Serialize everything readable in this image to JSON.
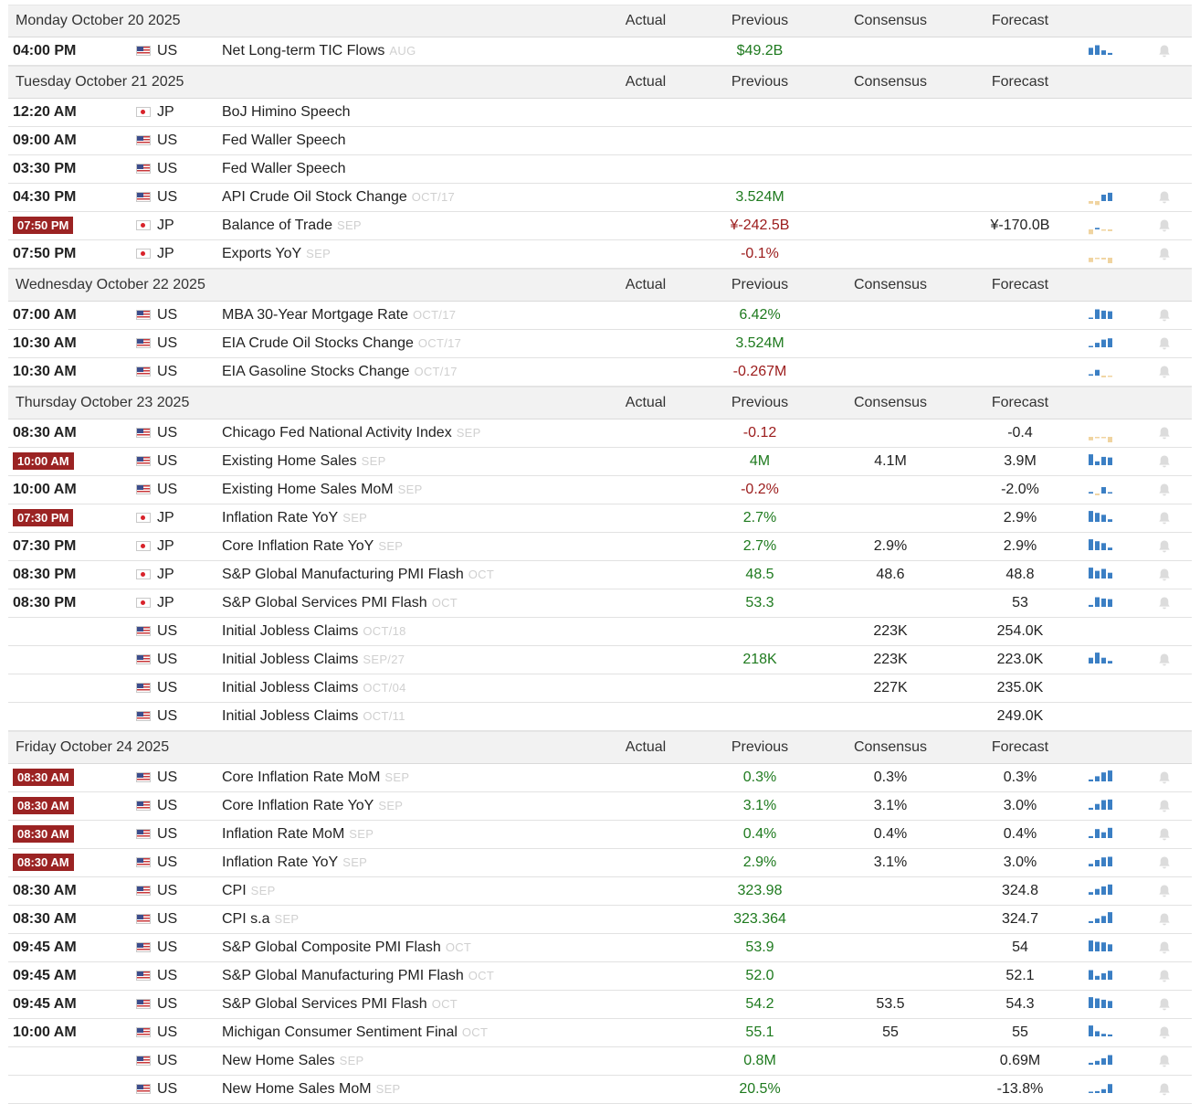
{
  "columns": {
    "actual": "Actual",
    "previous": "Previous",
    "consensus": "Consensus",
    "forecast": "Forecast"
  },
  "colors": {
    "positive": "#1e7a1e",
    "negative": "#9b1b1b",
    "highlight": "#9b2323",
    "spark_up": "#3b7fc4",
    "spark_down": "#f0d4a0"
  },
  "icons": {
    "chart": "mini-bar-chart-icon",
    "alert": "bell-icon"
  },
  "days": [
    {
      "label": "Monday October 20 2025",
      "events": [
        {
          "time": "04:00 PM",
          "hl": false,
          "flag": "us",
          "country": "US",
          "name": "Net Long-term TIC Flows",
          "ref": "AUG",
          "actual": "",
          "previous": "$49.2B",
          "prev_tone": "pos",
          "consensus": "",
          "forecast": "",
          "spark": [
            0.55,
            0.75,
            0.35,
            0.15
          ],
          "has_alert": true
        }
      ]
    },
    {
      "label": "Tuesday October 21 2025",
      "events": [
        {
          "time": "12:20 AM",
          "hl": false,
          "flag": "jp",
          "country": "JP",
          "name": "BoJ Himino Speech",
          "ref": "",
          "actual": "",
          "previous": "",
          "prev_tone": "neu",
          "consensus": "",
          "forecast": "",
          "spark": null,
          "has_alert": false
        },
        {
          "time": "09:00 AM",
          "hl": false,
          "flag": "us",
          "country": "US",
          "name": "Fed Waller Speech",
          "ref": "",
          "actual": "",
          "previous": "",
          "prev_tone": "neu",
          "consensus": "",
          "forecast": "",
          "spark": null,
          "has_alert": false
        },
        {
          "time": "03:30 PM",
          "hl": false,
          "flag": "us",
          "country": "US",
          "name": "Fed Waller Speech",
          "ref": "",
          "actual": "",
          "previous": "",
          "prev_tone": "neu",
          "consensus": "",
          "forecast": "",
          "spark": null,
          "has_alert": false
        },
        {
          "time": "04:30 PM",
          "hl": false,
          "flag": "us",
          "country": "US",
          "name": "API Crude Oil Stock Change",
          "ref": "OCT/17",
          "actual": "",
          "previous": "3.524M",
          "prev_tone": "pos",
          "consensus": "",
          "forecast": "",
          "spark": [
            -0.3,
            -0.45,
            0.5,
            0.65
          ],
          "has_alert": true
        },
        {
          "time": "07:50 PM",
          "hl": true,
          "flag": "jp",
          "country": "JP",
          "name": "Balance of Trade",
          "ref": "SEP",
          "actual": "",
          "previous": "¥-242.5B",
          "prev_tone": "neg",
          "consensus": "",
          "forecast": "¥-170.0B",
          "spark": [
            -0.55,
            0.12,
            -0.12,
            -0.2
          ],
          "has_alert": true
        },
        {
          "time": "07:50 PM",
          "hl": false,
          "flag": "jp",
          "country": "JP",
          "name": "Exports YoY",
          "ref": "SEP",
          "actual": "",
          "previous": "-0.1%",
          "prev_tone": "neg",
          "consensus": "",
          "forecast": "",
          "spark": [
            -0.5,
            -0.1,
            -0.2,
            -0.75
          ],
          "has_alert": true
        }
      ]
    },
    {
      "label": "Wednesday October 22 2025",
      "events": [
        {
          "time": "07:00 AM",
          "hl": false,
          "flag": "us",
          "country": "US",
          "name": "MBA 30-Year Mortgage Rate",
          "ref": "OCT/17",
          "actual": "",
          "previous": "6.42%",
          "prev_tone": "pos",
          "consensus": "",
          "forecast": "",
          "spark": [
            0.1,
            0.75,
            0.65,
            0.6
          ],
          "has_alert": true
        },
        {
          "time": "10:30 AM",
          "hl": false,
          "flag": "us",
          "country": "US",
          "name": "EIA Crude Oil Stocks Change",
          "ref": "OCT/17",
          "actual": "",
          "previous": "3.524M",
          "prev_tone": "pos",
          "consensus": "",
          "forecast": "",
          "spark": [
            0.1,
            0.35,
            0.6,
            0.7
          ],
          "has_alert": true
        },
        {
          "time": "10:30 AM",
          "hl": false,
          "flag": "us",
          "country": "US",
          "name": "EIA Gasoline Stocks Change",
          "ref": "OCT/17",
          "actual": "",
          "previous": "-0.267M",
          "prev_tone": "neg",
          "consensus": "",
          "forecast": "",
          "spark": [
            0.1,
            0.45,
            -0.2,
            -0.15
          ],
          "has_alert": true
        }
      ]
    },
    {
      "label": "Thursday October 23 2025",
      "events": [
        {
          "time": "08:30 AM",
          "hl": false,
          "flag": "us",
          "country": "US",
          "name": "Chicago Fed National Activity Index",
          "ref": "SEP",
          "actual": "",
          "previous": "-0.12",
          "prev_tone": "neg",
          "consensus": "",
          "forecast": "-0.4",
          "spark": [
            -0.4,
            -0.15,
            -0.15,
            -0.75
          ],
          "has_alert": true
        },
        {
          "time": "10:00 AM",
          "hl": true,
          "flag": "us",
          "country": "US",
          "name": "Existing Home Sales",
          "ref": "SEP",
          "actual": "",
          "previous": "4M",
          "prev_tone": "pos",
          "consensus": "4.1M",
          "forecast": "3.9M",
          "spark": [
            0.85,
            0.3,
            0.65,
            0.6
          ],
          "has_alert": true
        },
        {
          "time": "10:00 AM",
          "hl": false,
          "flag": "us",
          "country": "US",
          "name": "Existing Home Sales MoM",
          "ref": "SEP",
          "actual": "",
          "previous": "-0.2%",
          "prev_tone": "neg",
          "consensus": "",
          "forecast": "-2.0%",
          "spark": [
            0.12,
            -0.2,
            0.5,
            0.1
          ],
          "has_alert": true
        },
        {
          "time": "07:30 PM",
          "hl": true,
          "flag": "jp",
          "country": "JP",
          "name": "Inflation Rate YoY",
          "ref": "SEP",
          "actual": "",
          "previous": "2.7%",
          "prev_tone": "pos",
          "consensus": "",
          "forecast": "2.9%",
          "spark": [
            0.85,
            0.7,
            0.55,
            0.2
          ],
          "has_alert": true
        },
        {
          "time": "07:30 PM",
          "hl": false,
          "flag": "jp",
          "country": "JP",
          "name": "Core Inflation Rate YoY",
          "ref": "SEP",
          "actual": "",
          "previous": "2.7%",
          "prev_tone": "pos",
          "consensus": "2.9%",
          "forecast": "2.9%",
          "spark": [
            0.85,
            0.7,
            0.55,
            0.2
          ],
          "has_alert": true
        },
        {
          "time": "08:30 PM",
          "hl": false,
          "flag": "jp",
          "country": "JP",
          "name": "S&P Global Manufacturing PMI Flash",
          "ref": "OCT",
          "actual": "",
          "previous": "48.5",
          "prev_tone": "pos",
          "consensus": "48.6",
          "forecast": "48.8",
          "spark": [
            0.85,
            0.6,
            0.75,
            0.45
          ],
          "has_alert": true
        },
        {
          "time": "08:30 PM",
          "hl": false,
          "flag": "jp",
          "country": "JP",
          "name": "S&P Global Services PMI Flash",
          "ref": "OCT",
          "actual": "",
          "previous": "53.3",
          "prev_tone": "pos",
          "consensus": "",
          "forecast": "53",
          "spark": [
            0.15,
            0.75,
            0.65,
            0.6
          ],
          "has_alert": true
        },
        {
          "time": "",
          "hl": false,
          "flag": "us",
          "country": "US",
          "name": "Initial Jobless Claims",
          "ref": "OCT/18",
          "actual": "",
          "previous": "",
          "prev_tone": "neu",
          "consensus": "223K",
          "forecast": "254.0K",
          "spark": null,
          "has_alert": false
        },
        {
          "time": "",
          "hl": false,
          "flag": "us",
          "country": "US",
          "name": "Initial Jobless Claims",
          "ref": "SEP/27",
          "actual": "",
          "previous": "218K",
          "prev_tone": "pos",
          "consensus": "223K",
          "forecast": "223.0K",
          "spark": [
            0.45,
            0.85,
            0.45,
            0.2
          ],
          "has_alert": true
        },
        {
          "time": "",
          "hl": false,
          "flag": "us",
          "country": "US",
          "name": "Initial Jobless Claims",
          "ref": "OCT/04",
          "actual": "",
          "previous": "",
          "prev_tone": "neu",
          "consensus": "227K",
          "forecast": "235.0K",
          "spark": null,
          "has_alert": false
        },
        {
          "time": "",
          "hl": false,
          "flag": "us",
          "country": "US",
          "name": "Initial Jobless Claims",
          "ref": "OCT/11",
          "actual": "",
          "previous": "",
          "prev_tone": "neu",
          "consensus": "",
          "forecast": "249.0K",
          "spark": null,
          "has_alert": false
        }
      ]
    },
    {
      "label": "Friday October 24 2025",
      "events": [
        {
          "time": "08:30 AM",
          "hl": true,
          "flag": "us",
          "country": "US",
          "name": "Core Inflation Rate MoM",
          "ref": "SEP",
          "actual": "",
          "previous": "0.3%",
          "prev_tone": "pos",
          "consensus": "0.3%",
          "forecast": "0.3%",
          "spark": [
            0.15,
            0.4,
            0.7,
            0.85
          ],
          "has_alert": true
        },
        {
          "time": "08:30 AM",
          "hl": true,
          "flag": "us",
          "country": "US",
          "name": "Core Inflation Rate YoY",
          "ref": "SEP",
          "actual": "",
          "previous": "3.1%",
          "prev_tone": "pos",
          "consensus": "3.1%",
          "forecast": "3.0%",
          "spark": [
            0.15,
            0.45,
            0.75,
            0.8
          ],
          "has_alert": true
        },
        {
          "time": "08:30 AM",
          "hl": true,
          "flag": "us",
          "country": "US",
          "name": "Inflation Rate MoM",
          "ref": "SEP",
          "actual": "",
          "previous": "0.4%",
          "prev_tone": "pos",
          "consensus": "0.4%",
          "forecast": "0.4%",
          "spark": [
            0.15,
            0.7,
            0.45,
            0.8
          ],
          "has_alert": true
        },
        {
          "time": "08:30 AM",
          "hl": true,
          "flag": "us",
          "country": "US",
          "name": "Inflation Rate YoY",
          "ref": "SEP",
          "actual": "",
          "previous": "2.9%",
          "prev_tone": "pos",
          "consensus": "3.1%",
          "forecast": "3.0%",
          "spark": [
            0.2,
            0.5,
            0.7,
            0.75
          ],
          "has_alert": true
        },
        {
          "time": "08:30 AM",
          "hl": false,
          "flag": "us",
          "country": "US",
          "name": "CPI",
          "ref": "SEP",
          "actual": "",
          "previous": "323.98",
          "prev_tone": "pos",
          "consensus": "",
          "forecast": "324.8",
          "spark": [
            0.2,
            0.45,
            0.65,
            0.8
          ],
          "has_alert": true
        },
        {
          "time": "08:30 AM",
          "hl": false,
          "flag": "us",
          "country": "US",
          "name": "CPI s.a",
          "ref": "SEP",
          "actual": "",
          "previous": "323.364",
          "prev_tone": "pos",
          "consensus": "",
          "forecast": "324.7",
          "spark": [
            0.15,
            0.35,
            0.55,
            0.85
          ],
          "has_alert": true
        },
        {
          "time": "09:45 AM",
          "hl": false,
          "flag": "us",
          "country": "US",
          "name": "S&P Global Composite PMI Flash",
          "ref": "OCT",
          "actual": "",
          "previous": "53.9",
          "prev_tone": "pos",
          "consensus": "",
          "forecast": "54",
          "spark": [
            0.85,
            0.75,
            0.7,
            0.55
          ],
          "has_alert": true
        },
        {
          "time": "09:45 AM",
          "hl": false,
          "flag": "us",
          "country": "US",
          "name": "S&P Global Manufacturing PMI Flash",
          "ref": "OCT",
          "actual": "",
          "previous": "52.0",
          "prev_tone": "pos",
          "consensus": "",
          "forecast": "52.1",
          "spark": [
            0.75,
            0.3,
            0.5,
            0.7
          ],
          "has_alert": true
        },
        {
          "time": "09:45 AM",
          "hl": false,
          "flag": "us",
          "country": "US",
          "name": "S&P Global Services PMI Flash",
          "ref": "OCT",
          "actual": "",
          "previous": "54.2",
          "prev_tone": "pos",
          "consensus": "53.5",
          "forecast": "54.3",
          "spark": [
            0.85,
            0.75,
            0.65,
            0.55
          ],
          "has_alert": true
        },
        {
          "time": "10:00 AM",
          "hl": false,
          "flag": "us",
          "country": "US",
          "name": "Michigan Consumer Sentiment Final",
          "ref": "OCT",
          "actual": "",
          "previous": "55.1",
          "prev_tone": "pos",
          "consensus": "55",
          "forecast": "55",
          "spark": [
            0.85,
            0.4,
            0.2,
            0.15
          ],
          "has_alert": true
        },
        {
          "time": "",
          "hl": false,
          "flag": "us",
          "country": "US",
          "name": "New Home Sales",
          "ref": "SEP",
          "actual": "",
          "previous": "0.8M",
          "prev_tone": "pos",
          "consensus": "",
          "forecast": "0.69M",
          "spark": [
            0.15,
            0.3,
            0.5,
            0.75
          ],
          "has_alert": true
        },
        {
          "time": "",
          "hl": false,
          "flag": "us",
          "country": "US",
          "name": "New Home Sales MoM",
          "ref": "SEP",
          "actual": "",
          "previous": "20.5%",
          "prev_tone": "pos",
          "consensus": "",
          "forecast": "-13.8%",
          "spark": [
            0.1,
            0.15,
            0.3,
            0.7
          ],
          "has_alert": true
        }
      ]
    }
  ]
}
